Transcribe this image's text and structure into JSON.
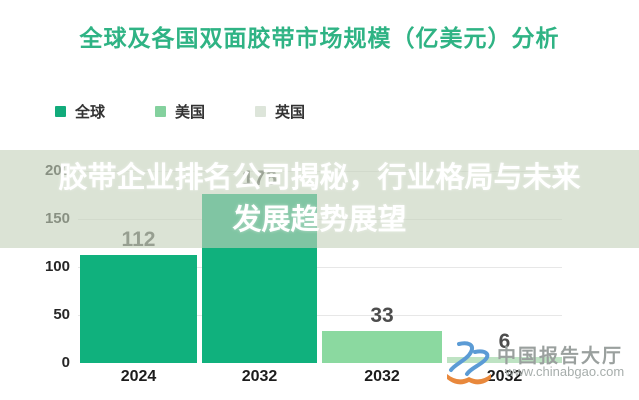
{
  "chart_data": {
    "type": "bar",
    "title": "全球及各国双面胶带市场规模（亿美元）分析",
    "title_color": "#2fb384",
    "unit": "亿美元",
    "legend": [
      {
        "label": "全球",
        "color": "#12ab7b"
      },
      {
        "label": "美国",
        "color": "#84d19e"
      },
      {
        "label": "英国",
        "color": "#dde5da"
      }
    ],
    "categories": [
      "2024",
      "2032",
      "2032",
      "2032"
    ],
    "bars": [
      {
        "x": "2024",
        "series": "全球",
        "value": 112,
        "color": "#10b17d"
      },
      {
        "x": "2032",
        "series": "全球",
        "value": 176,
        "color": "#10b17d"
      },
      {
        "x": "2032",
        "series": "美国",
        "value": 33,
        "color": "#8bd9a0"
      },
      {
        "x": "2032",
        "series": "英国",
        "value": 6,
        "color": "#bee3c3"
      }
    ],
    "y_ticks": [
      0,
      50,
      100,
      150,
      200
    ],
    "ylim": [
      0,
      200
    ],
    "grid": true,
    "legend_position": "top-left"
  },
  "overlay_banner": {
    "line1": "胶带企业排名公司揭秘，行业格局与未来",
    "line2": "发展趋势展望",
    "text_color": "#ffffff",
    "background": "rgba(197,210,188,0.62)"
  },
  "watermark": {
    "name": "中国报告大厅",
    "url_text": "www.chinabgao.com",
    "logo_blue": "#5b9bd5",
    "logo_orange": "#e8883c"
  }
}
